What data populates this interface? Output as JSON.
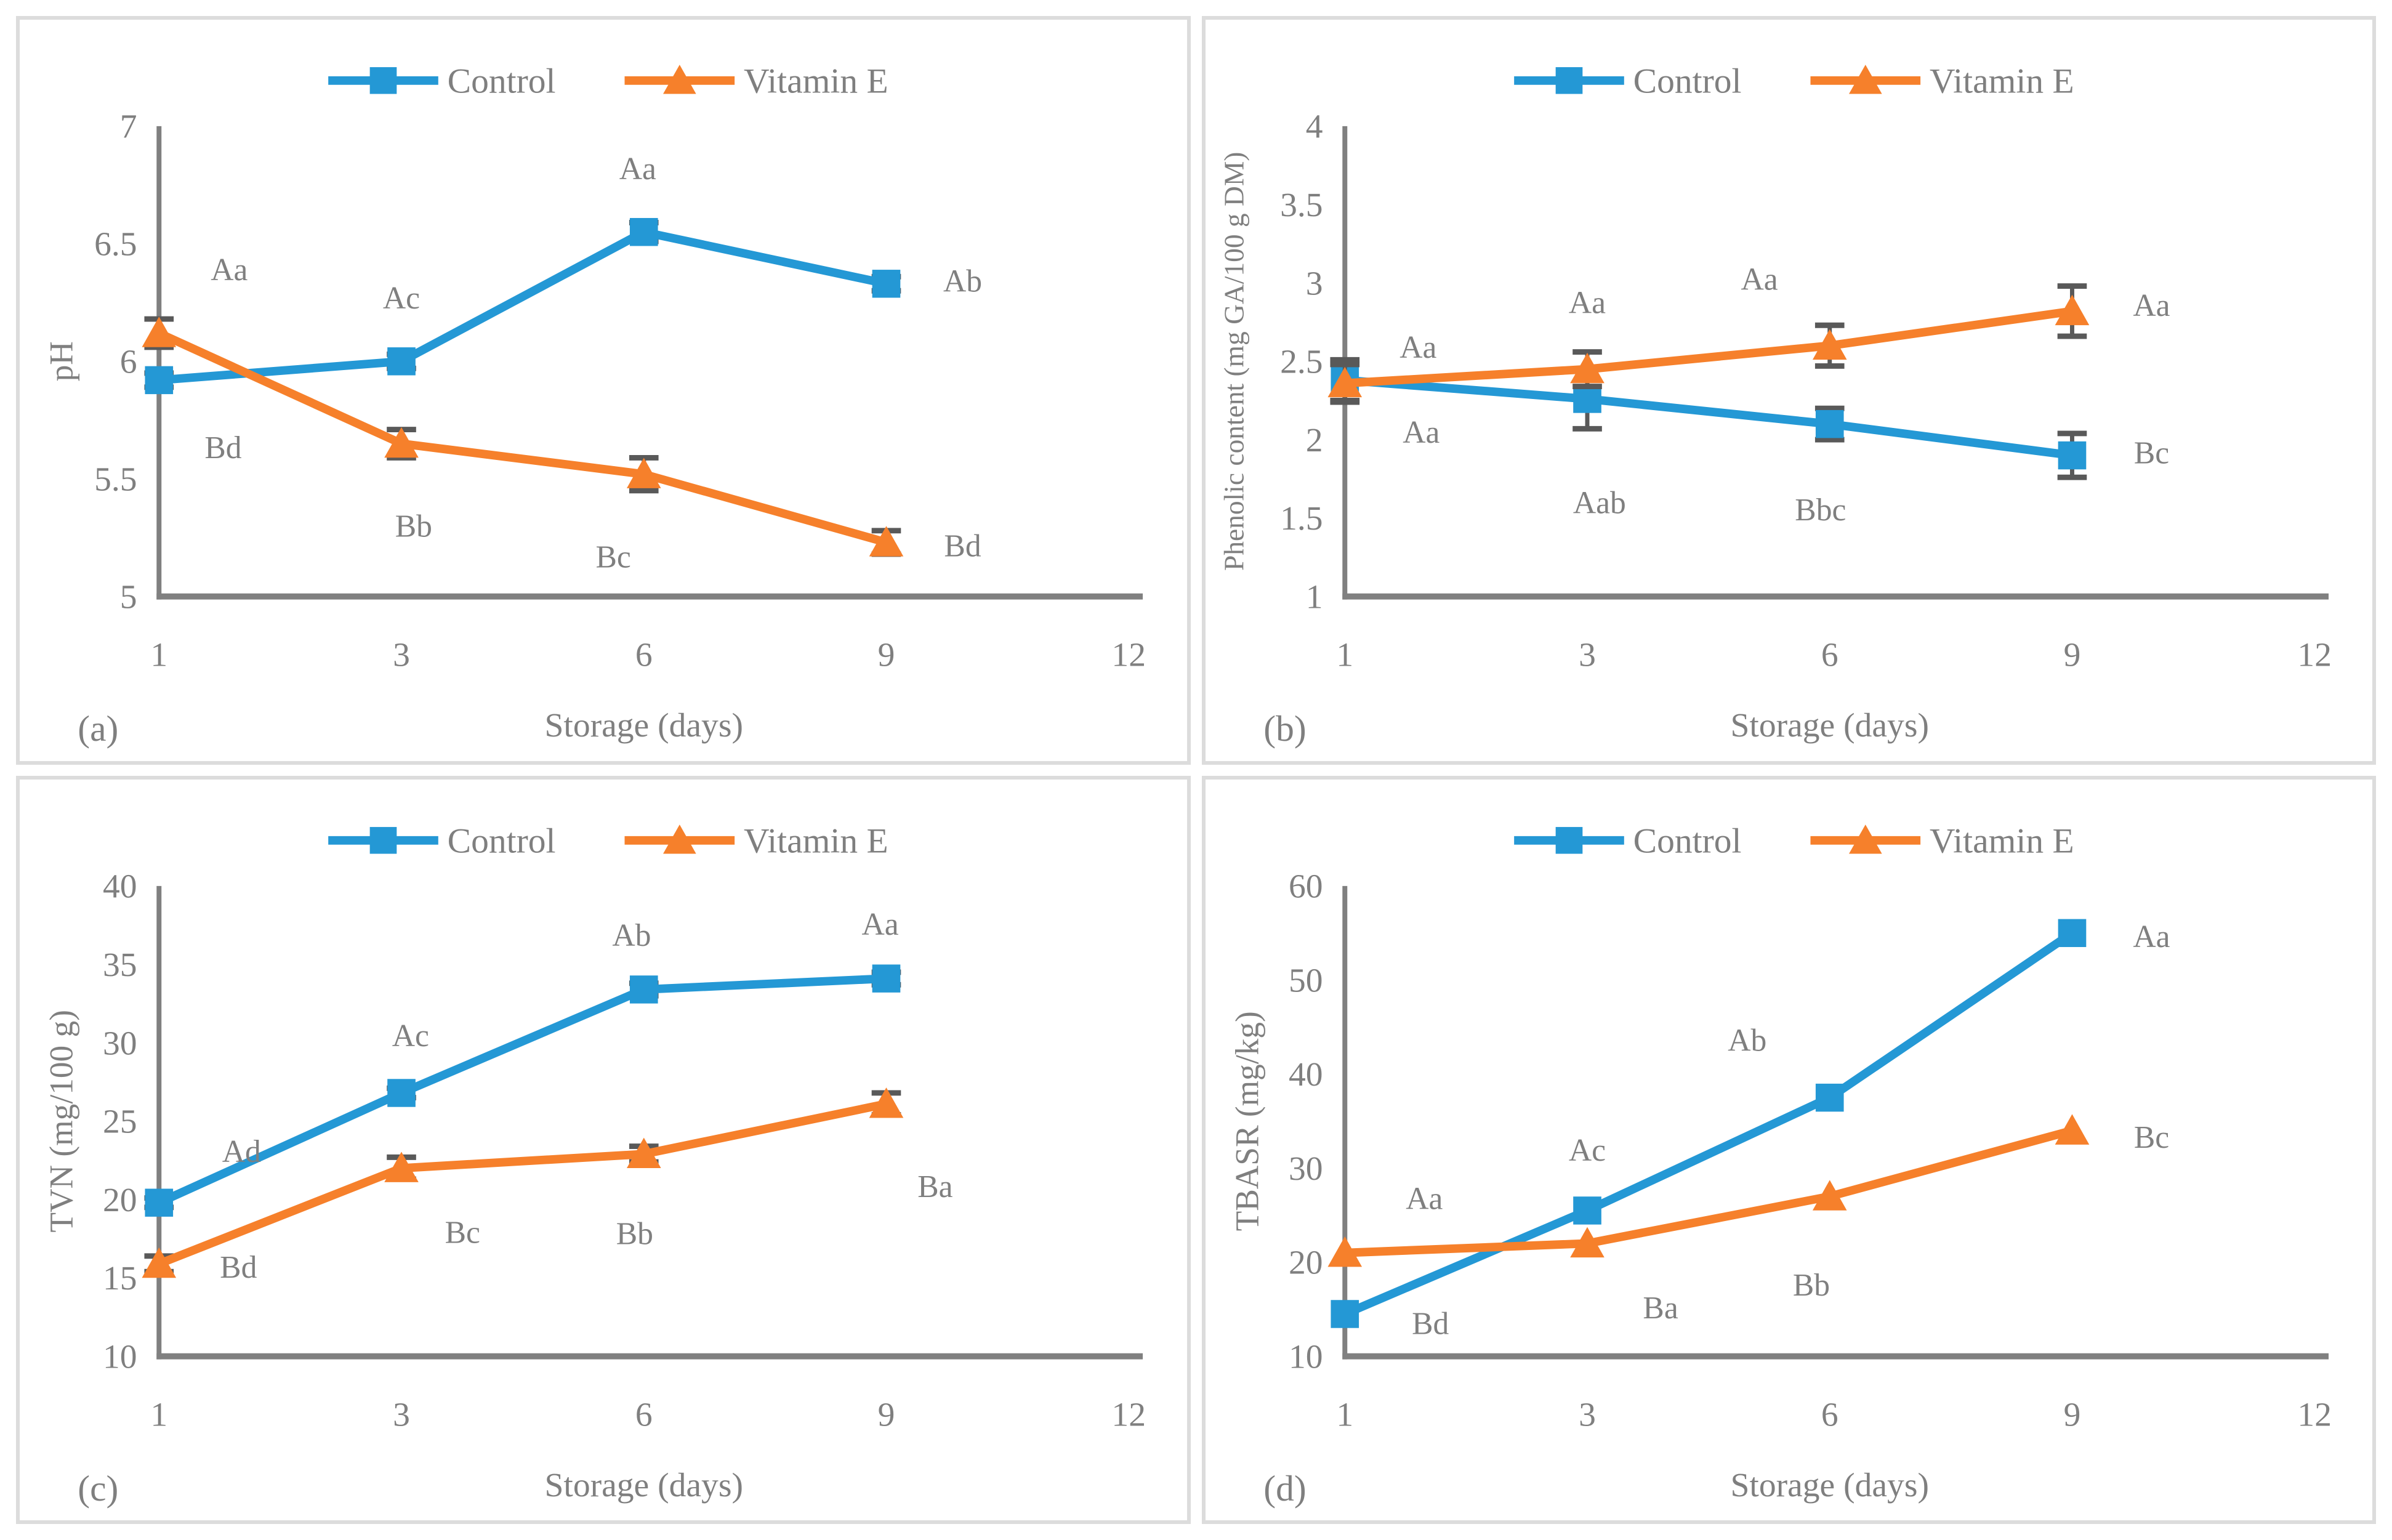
{
  "figure": {
    "colors": {
      "control": "#2498D5",
      "vitamin_e": "#F6802B",
      "text": "#7F7F7F",
      "axis": "#808080",
      "error_bar": "#595959",
      "panel_border": "#DCDCDC",
      "background": "#FFFFFF"
    },
    "legend": [
      "Control",
      "Vitamin E"
    ]
  },
  "chart_data": [
    {
      "type": "line",
      "letter": "(a)",
      "title": "",
      "xlabel": "Storage (days)",
      "ylabel": "pH",
      "x": [
        1,
        3,
        6,
        9
      ],
      "xticks": [
        "1",
        "3",
        "6",
        "9",
        "12"
      ],
      "ylim": [
        5,
        7
      ],
      "yticks": [
        "5",
        "5.5",
        "6",
        "6.5",
        "7"
      ],
      "grid": false,
      "legend_position": "top",
      "series": [
        {
          "name": "Control",
          "marker": "square",
          "color": "#2498D5",
          "values": [
            5.92,
            6.0,
            6.55,
            6.33
          ],
          "errors": [
            0.03,
            0.03,
            0.04,
            0.03
          ],
          "point_labels": [
            "Bd",
            "Ac",
            "Aa",
            "Ab"
          ],
          "label_offsets": [
            [
              105,
              110
            ],
            [
              0,
              -105
            ],
            [
              -10,
              -105
            ],
            [
              125,
              -5
            ]
          ]
        },
        {
          "name": "Vitamin E",
          "marker": "triangle",
          "color": "#F6802B",
          "values": [
            6.12,
            5.65,
            5.52,
            5.23
          ],
          "errors": [
            0.06,
            0.06,
            0.07,
            0.05
          ],
          "point_labels": [
            "Aa",
            "Bb",
            "Bc",
            "Bd"
          ],
          "label_offsets": [
            [
              115,
              -105
            ],
            [
              20,
              135
            ],
            [
              -50,
              135
            ],
            [
              125,
              5
            ]
          ]
        }
      ]
    },
    {
      "type": "line",
      "letter": "(b)",
      "title": "",
      "xlabel": "Storage (days)",
      "ylabel": "Phenolic content (mg GA/100 g DM)",
      "x": [
        1,
        3,
        6,
        9
      ],
      "xticks": [
        "1",
        "3",
        "6",
        "9",
        "12"
      ],
      "ylim": [
        1,
        4
      ],
      "yticks": [
        "1",
        "1.5",
        "2",
        "2.5",
        "3",
        "3.5",
        "4"
      ],
      "grid": false,
      "legend_position": "top",
      "series": [
        {
          "name": "Control",
          "marker": "square",
          "color": "#2498D5",
          "values": [
            2.38,
            2.26,
            2.1,
            1.9
          ],
          "errors": [
            0.13,
            0.19,
            0.1,
            0.14
          ],
          "point_labels": [
            "Aa",
            "Aab",
            "Bbc",
            "Bc"
          ],
          "label_offsets": [
            [
              125,
              85
            ],
            [
              20,
              170
            ],
            [
              -15,
              140
            ],
            [
              130,
              -5
            ]
          ]
        },
        {
          "name": "Vitamin E",
          "marker": "triangle",
          "color": "#F6802B",
          "values": [
            2.36,
            2.45,
            2.6,
            2.82
          ],
          "errors": [
            0.12,
            0.11,
            0.13,
            0.16
          ],
          "point_labels": [
            "Aa",
            "Aa",
            "Aa",
            "Aa"
          ],
          "label_offsets": [
            [
              120,
              -60
            ],
            [
              0,
              -110
            ],
            [
              -115,
              -110
            ],
            [
              130,
              -10
            ]
          ]
        }
      ]
    },
    {
      "type": "line",
      "letter": "(c)",
      "title": "",
      "xlabel": "Storage (days)",
      "ylabel": "TVN (mg/100 g)",
      "x": [
        1,
        3,
        6,
        9
      ],
      "xticks": [
        "1",
        "3",
        "6",
        "9",
        "12"
      ],
      "ylim": [
        10,
        40
      ],
      "yticks": [
        "10",
        "15",
        "20",
        "25",
        "30",
        "35",
        "40"
      ],
      "grid": false,
      "legend_position": "top",
      "series": [
        {
          "name": "Control",
          "marker": "square",
          "color": "#2498D5",
          "values": [
            19.8,
            26.8,
            33.4,
            34.1
          ],
          "errors": [
            0.3,
            0.3,
            0.4,
            0.4
          ],
          "point_labels": [
            "Ad",
            "Ac",
            "Ab",
            "Aa"
          ],
          "label_offsets": [
            [
              135,
              -85
            ],
            [
              15,
              -95
            ],
            [
              -20,
              -90
            ],
            [
              -10,
              -90
            ]
          ]
        },
        {
          "name": "Vitamin E",
          "marker": "triangle",
          "color": "#F6802B",
          "values": [
            15.9,
            22.0,
            22.9,
            26.1
          ],
          "errors": [
            0.5,
            0.7,
            0.5,
            0.7
          ],
          "point_labels": [
            "Bd",
            "Bc",
            "Bb",
            "Ba"
          ],
          "label_offsets": [
            [
              130,
              5
            ],
            [
              100,
              105
            ],
            [
              -15,
              130
            ],
            [
              80,
              135
            ]
          ]
        }
      ]
    },
    {
      "type": "line",
      "letter": "(d)",
      "title": "",
      "xlabel": "Storage (days)",
      "ylabel": "TBASR (mg/kg)",
      "x": [
        1,
        3,
        6,
        9
      ],
      "xticks": [
        "1",
        "3",
        "6",
        "9",
        "12"
      ],
      "ylim": [
        10,
        60
      ],
      "yticks": [
        "10",
        "20",
        "30",
        "40",
        "50",
        "60"
      ],
      "grid": false,
      "legend_position": "top",
      "series": [
        {
          "name": "Control",
          "marker": "square",
          "color": "#2498D5",
          "values": [
            14.5,
            25.5,
            37.5,
            55.0
          ],
          "errors": [
            0,
            0,
            0,
            0
          ],
          "point_labels": [
            "Bd",
            "Ac",
            "Ab",
            "Aa"
          ],
          "label_offsets": [
            [
              140,
              15
            ],
            [
              0,
              -100
            ],
            [
              -135,
              -95
            ],
            [
              130,
              5
            ]
          ]
        },
        {
          "name": "Vitamin E",
          "marker": "triangle",
          "color": "#F6802B",
          "values": [
            21.0,
            22.0,
            27.0,
            34.0
          ],
          "errors": [
            0,
            0,
            0,
            0
          ],
          "point_labels": [
            "Aa",
            "Ba",
            "Bb",
            "Bc"
          ],
          "label_offsets": [
            [
              130,
              -90
            ],
            [
              120,
              105
            ],
            [
              -30,
              145
            ],
            [
              130,
              10
            ]
          ]
        }
      ]
    }
  ]
}
